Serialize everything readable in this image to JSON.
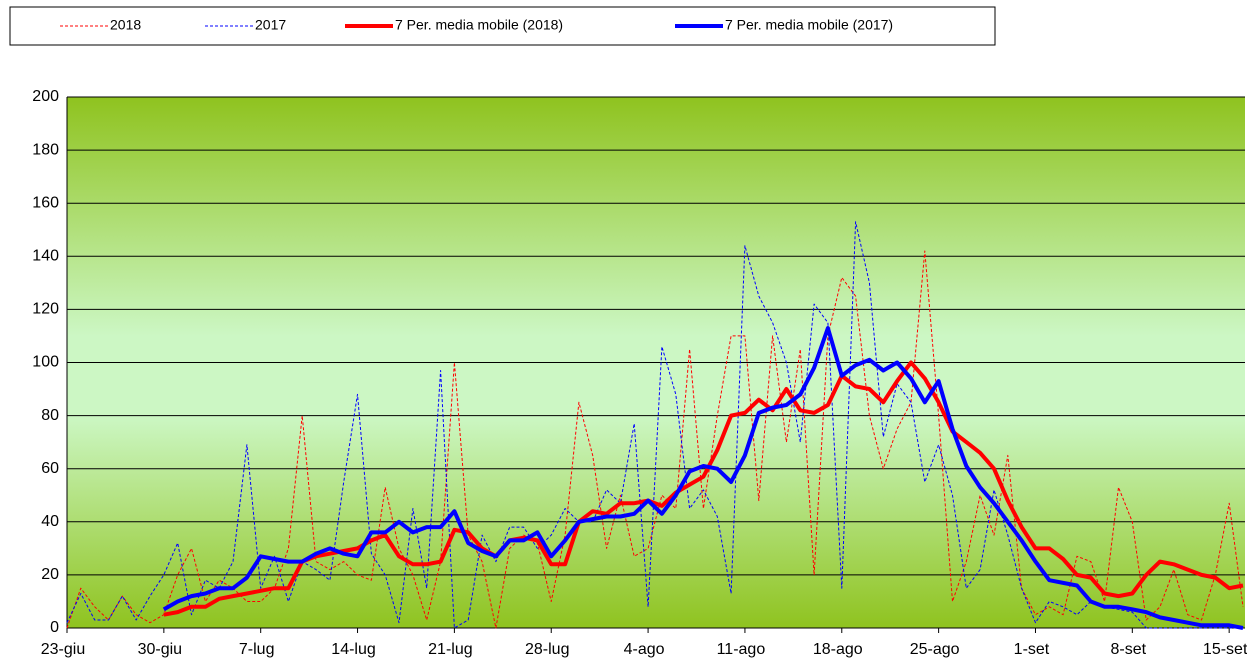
{
  "chart_data": {
    "type": "line",
    "categories": [
      "23-giu",
      null,
      null,
      null,
      null,
      null,
      null,
      "30-giu",
      null,
      null,
      null,
      null,
      null,
      null,
      "7-lug",
      null,
      null,
      null,
      null,
      null,
      null,
      "14-lug",
      null,
      null,
      null,
      null,
      null,
      null,
      "21-lug",
      null,
      null,
      null,
      null,
      null,
      null,
      "28-lug",
      null,
      null,
      null,
      null,
      null,
      null,
      "4-ago",
      null,
      null,
      null,
      null,
      null,
      null,
      "11-ago",
      null,
      null,
      null,
      null,
      null,
      null,
      "18-ago",
      null,
      null,
      null,
      null,
      null,
      null,
      "25-ago",
      null,
      null,
      null,
      null,
      null,
      null,
      "1-set",
      null,
      null,
      null,
      null,
      null,
      null,
      "8-set",
      null,
      null,
      null,
      null,
      null,
      null,
      "15-set",
      null
    ],
    "ylim": [
      0,
      200
    ],
    "yticks": [
      0,
      20,
      40,
      60,
      80,
      100,
      120,
      140,
      160,
      180,
      200
    ],
    "grid": true,
    "series": [
      {
        "name": "2018",
        "color": "#ff0000",
        "style": "dashed",
        "width": 1,
        "values": [
          0,
          15,
          8,
          3,
          12,
          5,
          2,
          5,
          20,
          30,
          10,
          18,
          15,
          10,
          10,
          15,
          30,
          80,
          25,
          22,
          25,
          20,
          18,
          53,
          30,
          20,
          3,
          25,
          100,
          35,
          25,
          0,
          30,
          35,
          32,
          10,
          35,
          85,
          65,
          30,
          50,
          27,
          30,
          50,
          45,
          105,
          45,
          80,
          110,
          110,
          48,
          110,
          70,
          105,
          20,
          110,
          132,
          125,
          80,
          60,
          75,
          85,
          142,
          80,
          10,
          25,
          50,
          35,
          65,
          15,
          5,
          8,
          5,
          27,
          25,
          10,
          53,
          40,
          3,
          8,
          22,
          5,
          3,
          20,
          47,
          8
        ]
      },
      {
        "name": "2017",
        "color": "#0000ff",
        "style": "dashed",
        "width": 1,
        "values": [
          2,
          13,
          3,
          3,
          12,
          3,
          12,
          20,
          32,
          5,
          18,
          15,
          25,
          69,
          15,
          27,
          10,
          25,
          22,
          18,
          55,
          88,
          28,
          20,
          2,
          45,
          15,
          97,
          0,
          3,
          35,
          25,
          38,
          38,
          30,
          35,
          45,
          40,
          40,
          52,
          47,
          77,
          8,
          106,
          88,
          45,
          52,
          42,
          13,
          144,
          125,
          115,
          100,
          70,
          122,
          115,
          15,
          153,
          130,
          72,
          92,
          85,
          55,
          69,
          50,
          15,
          22,
          52,
          35,
          15,
          2,
          10,
          8,
          5,
          10,
          8,
          7,
          6,
          0,
          0,
          0,
          0,
          0,
          0,
          0,
          0
        ]
      },
      {
        "name": "7 Per. media mobile (2018)",
        "color": "#ff0000",
        "style": "solid",
        "width": 4,
        "values": [
          null,
          null,
          null,
          null,
          null,
          null,
          null,
          5,
          6,
          8,
          8,
          11,
          12,
          13,
          14,
          15,
          15,
          25,
          27,
          28,
          29,
          30,
          33,
          35,
          27,
          24,
          24,
          25,
          37,
          36,
          30,
          27,
          33,
          34,
          33,
          24,
          24,
          40,
          44,
          43,
          47,
          47,
          48,
          46,
          51,
          54,
          57,
          67,
          80,
          81,
          86,
          82,
          90,
          82,
          81,
          84,
          95,
          91,
          90,
          85,
          93,
          100,
          94,
          85,
          74,
          70,
          66,
          60,
          48,
          38,
          30,
          30,
          26,
          20,
          19,
          13,
          12,
          13,
          20,
          25,
          24,
          22,
          20,
          19,
          15,
          16
        ]
      },
      {
        "name": "7 Per. media mobile (2017)",
        "color": "#0000ff",
        "style": "solid",
        "width": 4,
        "values": [
          null,
          null,
          null,
          null,
          null,
          null,
          null,
          7,
          10,
          12,
          13,
          15,
          15,
          19,
          27,
          26,
          25,
          25,
          28,
          30,
          28,
          27,
          36,
          36,
          40,
          36,
          38,
          38,
          44,
          32,
          29,
          27,
          33,
          33,
          36,
          27,
          33,
          40,
          41,
          42,
          42,
          43,
          48,
          43,
          50,
          59,
          61,
          60,
          55,
          65,
          81,
          83,
          84,
          88,
          98,
          113,
          95,
          99,
          101,
          97,
          100,
          94,
          85,
          93,
          75,
          61,
          53,
          47,
          40,
          33,
          25,
          18,
          17,
          16,
          10,
          8,
          8,
          7,
          6,
          4,
          3,
          2,
          1,
          1,
          1,
          0
        ]
      }
    ]
  }
}
